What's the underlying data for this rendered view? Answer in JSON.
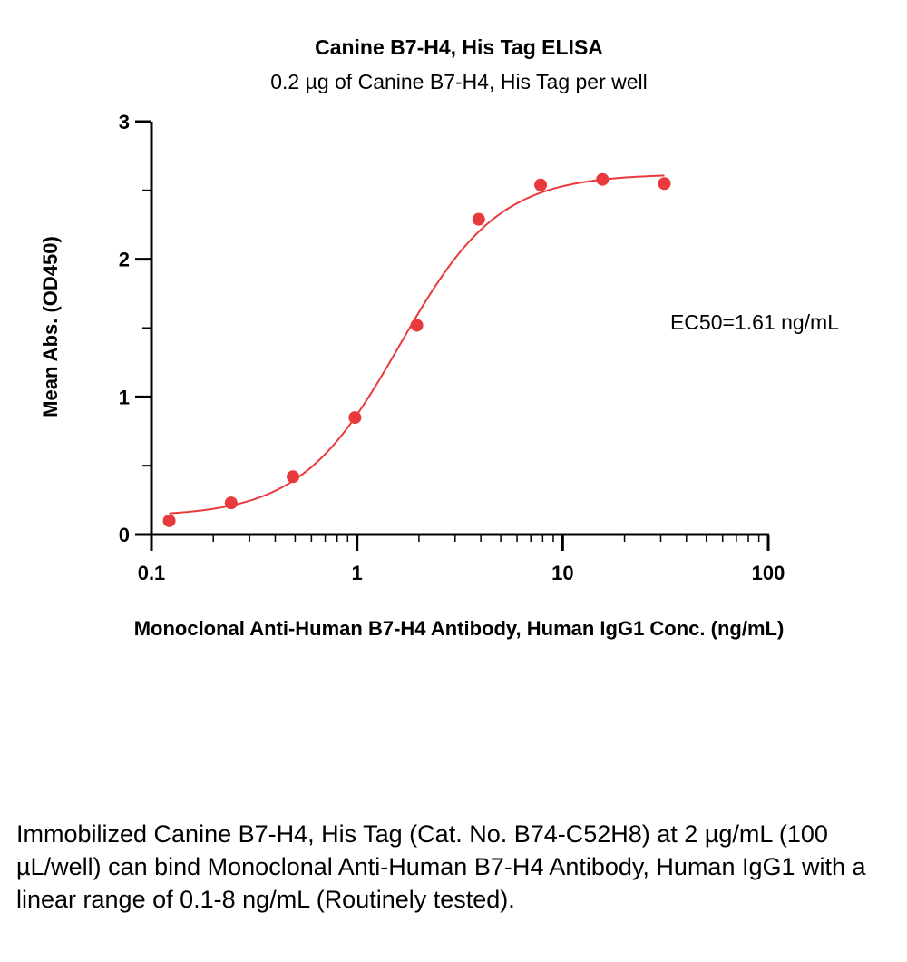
{
  "chart_data": {
    "type": "scatter",
    "title": "Canine B7-H4, His Tag ELISA",
    "subtitle": "0.2 µg of Canine B7-H4, His Tag per well",
    "xlabel": "Monoclonal Anti-Human B7-H4 Antibody, Human IgG1 Conc. (ng/mL)",
    "ylabel": "Mean Abs. (OD450)",
    "xscale": "log",
    "xlim": [
      0.1,
      100
    ],
    "ylim": [
      0,
      3
    ],
    "xticks": [
      "0.1",
      "1",
      "10",
      "100"
    ],
    "yticks": [
      "0",
      "1",
      "2",
      "3"
    ],
    "grid": false,
    "series": [
      {
        "x": [
          0.122,
          0.244,
          0.488,
          0.977,
          1.953,
          3.906,
          7.813,
          15.625,
          31.25
        ],
        "y": [
          0.1,
          0.23,
          0.42,
          0.85,
          1.52,
          2.29,
          2.54,
          2.58,
          2.55
        ],
        "color": "#e8393c"
      }
    ],
    "fit_curve": {
      "model": "4PL",
      "bottom": 0.13,
      "top": 2.62,
      "ec50": 1.61,
      "hill": 1.8,
      "x_range": [
        0.122,
        31.25
      ],
      "color": "#e8393c"
    },
    "annotations": [
      "EC50=1.61 ng/mL"
    ]
  },
  "caption": "Immobilized Canine B7-H4, His Tag (Cat. No. B74-C52H8) at 2 µg/mL (100 µL/well) can bind Monoclonal Anti-Human B7-H4 Antibody, Human IgG1 with a linear range of 0.1-8 ng/mL (Routinely tested)."
}
